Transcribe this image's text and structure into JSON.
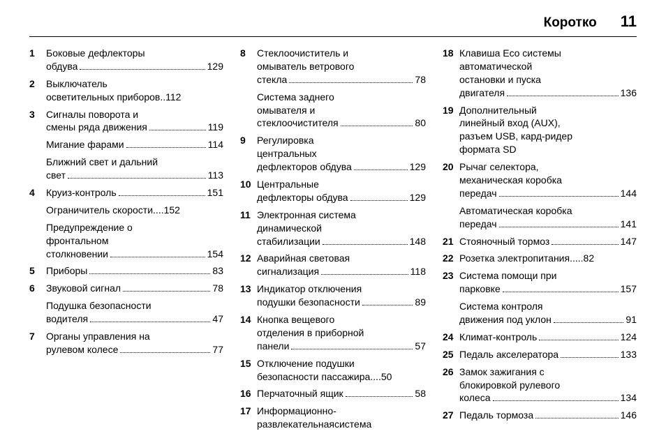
{
  "header": {
    "title": "Коротко",
    "page": "11"
  },
  "columns": [
    [
      {
        "num": "1",
        "text_lines": [
          "Боковые дефлекторы",
          "обдува"
        ],
        "page": "129"
      },
      {
        "num": "2",
        "text_lines": [
          "Выключатель",
          "осветительных приборов"
        ],
        "page": "112",
        "sep": " .. "
      },
      {
        "num": "3",
        "text_lines": [
          "Сигналы поворота и",
          "смены ряда движения"
        ],
        "page": "119"
      },
      {
        "num": "",
        "text_lines": [
          "Мигание фарами"
        ],
        "page": "114"
      },
      {
        "num": "",
        "text_lines": [
          "Ближний свет и дальний",
          "свет"
        ],
        "page": "113"
      },
      {
        "num": "4",
        "text_lines": [
          "Круиз-контроль"
        ],
        "page": "151"
      },
      {
        "num": "",
        "text_lines": [
          "Ограничитель скорости"
        ],
        "page": "152",
        "sep": " .... "
      },
      {
        "num": "",
        "text_lines": [
          "Предупреждение о",
          "фронтальном",
          "столкновении"
        ],
        "page": "154"
      },
      {
        "num": "5",
        "text_lines": [
          "Приборы"
        ],
        "page": "83"
      },
      {
        "num": "6",
        "text_lines": [
          "Звуковой сигнал"
        ],
        "page": "78"
      },
      {
        "num": "",
        "text_lines": [
          "Подушка безопасности",
          "водителя"
        ],
        "page": "47"
      },
      {
        "num": "7",
        "text_lines": [
          "Органы управления на",
          "рулевом колесе"
        ],
        "page": "77"
      }
    ],
    [
      {
        "num": "8",
        "text_lines": [
          "Стеклоочиститель и",
          "омыватель ветрового",
          "стекла"
        ],
        "page": "78"
      },
      {
        "num": "",
        "text_lines": [
          "Система заднего",
          "омывателя и",
          "стеклоочистителя"
        ],
        "page": "80"
      },
      {
        "num": "9",
        "text_lines": [
          "Регулировка",
          "центральных",
          "дефлекторов обдува"
        ],
        "page": "129"
      },
      {
        "num": "10",
        "text_lines": [
          "Центральные",
          "дефлекторы обдува"
        ],
        "page": "129"
      },
      {
        "num": "11",
        "text_lines": [
          "Электронная система",
          "динамической",
          "стабилизации"
        ],
        "page": "148"
      },
      {
        "num": "12",
        "text_lines": [
          "Аварийная световая",
          "сигнализация"
        ],
        "page": "118"
      },
      {
        "num": "13",
        "text_lines": [
          "Индикатор отключения",
          "подушки безопасности"
        ],
        "page": "89"
      },
      {
        "num": "14",
        "text_lines": [
          "Кнопка вещевого",
          "отделения в приборной",
          "панели"
        ],
        "page": "57"
      },
      {
        "num": "15",
        "text_lines": [
          "Отключение подушки",
          "безопасности пассажира"
        ],
        "page": "50",
        "sep": " .... "
      },
      {
        "num": "16",
        "text_lines": [
          "Перчаточный ящик"
        ],
        "page": "58"
      },
      {
        "num": "17",
        "text_lines": [
          "Информационно-",
          "развлекательнаясистема"
        ],
        "page": null
      }
    ],
    [
      {
        "num": "18",
        "text_lines": [
          "Клавиша Eco системы",
          "автоматической",
          "остановки и пуска",
          "двигателя"
        ],
        "page": "136"
      },
      {
        "num": "19",
        "text_lines": [
          "Дополнительный",
          "линейный вход (AUX),",
          "разъем USB, кард-ридер",
          "формата SD"
        ],
        "page": null
      },
      {
        "num": "20",
        "text_lines": [
          "Рычаг селектора,",
          "механическая коробка",
          "передач"
        ],
        "page": "144"
      },
      {
        "num": "",
        "text_lines": [
          "Автоматическая коробка",
          "передач"
        ],
        "page": "141"
      },
      {
        "num": "21",
        "text_lines": [
          "Стояночный тормоз"
        ],
        "page": "147"
      },
      {
        "num": "22",
        "text_lines": [
          "Розетка электропитания"
        ],
        "page": "82",
        "sep": " ..... "
      },
      {
        "num": "23",
        "text_lines": [
          "Система помощи при",
          "парковке"
        ],
        "page": "157"
      },
      {
        "num": "",
        "text_lines": [
          "Система контроля",
          "движения под уклон"
        ],
        "page": "91"
      },
      {
        "num": "24",
        "text_lines": [
          "Климат-контроль"
        ],
        "page": "124"
      },
      {
        "num": "25",
        "text_lines": [
          "Педаль акселератора"
        ],
        "page": "133"
      },
      {
        "num": "26",
        "text_lines": [
          "Замок зажигания с",
          "блокировкой рулевого",
          "колеса"
        ],
        "page": "134"
      },
      {
        "num": "27",
        "text_lines": [
          "Педаль тормоза"
        ],
        "page": "146"
      }
    ]
  ]
}
